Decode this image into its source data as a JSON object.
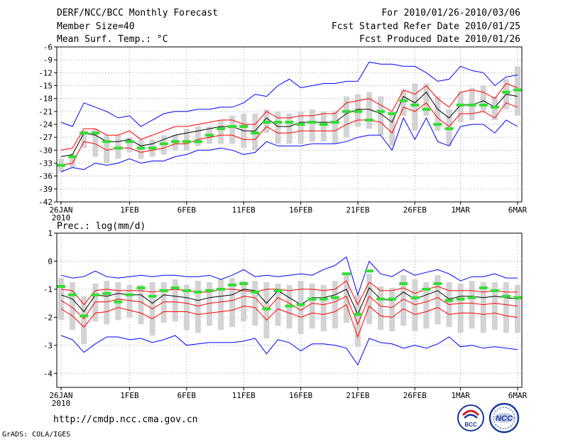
{
  "header": {
    "title": "DERF/NCC/BCC Monthly Forecast",
    "member_size": "Member Size=40",
    "variable": "Mean Surf. Temp.: °C",
    "forecast_range": "For 2010/01/26-2010/03/06",
    "fcst_started": "Fcst Started Refer Date 2010/01/25",
    "fcst_produced": "Fcst Produced Date 2010/01/26"
  },
  "footer": {
    "url": "http://cmdp.ncc.cma.gov.cn",
    "grads": "GrADS: COLA/IGES",
    "logo_left_text": "BCC",
    "logo_right_text": "NCC"
  },
  "colors": {
    "envelope": "#0000ff",
    "spread": "#ff0000",
    "mean": "#000000",
    "box": "#d3d3d3",
    "marker": "#33dd33",
    "grid": "#a0a0a0"
  },
  "chart_data": [
    {
      "type": "line",
      "title": "Mean Surf. Temp.: °C",
      "x_tick_labels": [
        "26JAN",
        "1FEB",
        "6FEB",
        "11FEB",
        "16FEB",
        "21FEB",
        "26FEB",
        "1MAR",
        "6MAR"
      ],
      "x_tick_days": [
        0,
        6,
        11,
        16,
        21,
        26,
        31,
        35,
        40
      ],
      "x_sub_label": "2010",
      "xlim": [
        0,
        40
      ],
      "ylim": [
        -42,
        -6
      ],
      "y_ticks": [
        -42,
        -39,
        -36,
        -33,
        -30,
        -27,
        -24,
        -21,
        -18,
        -15,
        -12,
        -9,
        -6
      ],
      "grid": true,
      "series": [
        {
          "name": "max",
          "values": [
            -23.5,
            -24.5,
            -19,
            -20,
            -21,
            -22.5,
            -22,
            -24.5,
            -23,
            -21.5,
            -21,
            -21,
            -20.5,
            -20.5,
            -20,
            -20,
            -19,
            -17,
            -17.5,
            -15,
            -13.5,
            -15.5,
            -15,
            -14.5,
            -14.5,
            -14,
            -14,
            -9.5,
            -10,
            -10,
            -10.5,
            -10.5,
            -12,
            -14,
            -13.5,
            -10.5,
            -11.5,
            -12,
            -15,
            -13,
            -12.5
          ]
        },
        {
          "name": "mean_plus",
          "values": [
            -30,
            -29.5,
            -25,
            -25,
            -26.5,
            -26.5,
            -25.5,
            -27.5,
            -26.5,
            -25.5,
            -24.5,
            -24.5,
            -24,
            -23.5,
            -23,
            -23,
            -24,
            -24,
            -21,
            -22.5,
            -22.5,
            -22,
            -22,
            -21.5,
            -21.5,
            -19,
            -18.5,
            -18,
            -19.5,
            -21,
            -16,
            -17,
            -15,
            -18,
            -20,
            -16.5,
            -16,
            -16.5,
            -18,
            -14.5,
            -15.5
          ]
        },
        {
          "name": "mean",
          "values": [
            -31.5,
            -31,
            -26,
            -26.5,
            -28,
            -28,
            -27.5,
            -29,
            -28.5,
            -27.5,
            -26.5,
            -26,
            -25.5,
            -25,
            -24.5,
            -24.5,
            -25.5,
            -25.5,
            -22.5,
            -24.5,
            -24.5,
            -23.5,
            -23.5,
            -23.5,
            -23.5,
            -21.5,
            -20.5,
            -20.5,
            -21.5,
            -23.5,
            -17.5,
            -19,
            -16.5,
            -20.5,
            -22.5,
            -19.5,
            -19.5,
            -18.5,
            -20,
            -17,
            -17.5
          ]
        },
        {
          "name": "mean_minus",
          "values": [
            -33.5,
            -33,
            -28,
            -28.5,
            -30,
            -29.5,
            -29.5,
            -30.5,
            -30,
            -29.5,
            -28.5,
            -28.5,
            -27.5,
            -27,
            -26.5,
            -26.5,
            -27.5,
            -27.5,
            -24.5,
            -26,
            -26,
            -25.5,
            -25.5,
            -25.5,
            -25.5,
            -24,
            -23,
            -23,
            -23.5,
            -26,
            -20,
            -21,
            -19,
            -22.5,
            -24.5,
            -21.5,
            -21.5,
            -21,
            -22.5,
            -19,
            -20
          ]
        },
        {
          "name": "min",
          "values": [
            -35,
            -34,
            -34.5,
            -33,
            -33.5,
            -33,
            -32,
            -33,
            -32.5,
            -32.5,
            -31.5,
            -31,
            -30,
            -30,
            -29.5,
            -30,
            -31,
            -30.5,
            -28,
            -29,
            -29,
            -29,
            -28.5,
            -28.5,
            -28.5,
            -28,
            -27,
            -26.5,
            -26.5,
            -30,
            -22.5,
            -27.5,
            -22.5,
            -28,
            -29,
            -24.5,
            -24,
            -24,
            -26,
            -23,
            -24.5
          ]
        },
        {
          "name": "box_top",
          "values": [
            -32,
            -31,
            -25.5,
            -25,
            -26.5,
            -26.5,
            -27,
            -27.5,
            -27.5,
            -26.5,
            -26.5,
            -25,
            -24.5,
            -24.5,
            -23,
            -22,
            -21.5,
            -21.5,
            -20.5,
            -21,
            -21.5,
            -21,
            -20.5,
            -21,
            -21,
            -17.5,
            -17,
            -16.5,
            -17.5,
            -21.5,
            -16,
            -14.5,
            -14.5,
            -17.5,
            -20.5,
            -16.5,
            -15.5,
            -15,
            -17.5,
            -13.5,
            -10.5
          ]
        },
        {
          "name": "box_bottom",
          "values": [
            -35,
            -34,
            -29.5,
            -31.5,
            -33,
            -32,
            -30.5,
            -32,
            -31.5,
            -31,
            -30,
            -30,
            -29,
            -28.5,
            -28.5,
            -28.5,
            -29.5,
            -30,
            -26,
            -28.5,
            -28.5,
            -28.5,
            -28,
            -28,
            -28.5,
            -27,
            -24.5,
            -25,
            -26.5,
            -29,
            -22,
            -25.5,
            -22,
            -25.5,
            -29,
            -23.5,
            -23,
            -21,
            -23,
            -20.5,
            -22
          ]
        },
        {
          "name": "marker",
          "values": [
            -33.5,
            -31.5,
            -26,
            -26,
            -28,
            -29.5,
            -28,
            -29.5,
            -29.5,
            -28.5,
            -28,
            -28,
            -28,
            -26.5,
            -25,
            -24.5,
            -24.5,
            -26,
            -23.5,
            -23.5,
            -23.5,
            -24,
            -23.5,
            -24,
            -23.5,
            -21,
            -21,
            -23,
            -21,
            -21.5,
            -18.5,
            -19.5,
            -20.5,
            -24,
            -25,
            -19.5,
            -19.5,
            -19.5,
            -20,
            -16.5,
            -16
          ]
        }
      ]
    },
    {
      "type": "line",
      "title": "Prec.: log(mm/d)",
      "x_tick_labels": [
        "26JAN",
        "1FEB",
        "6FEB",
        "11FEB",
        "16FEB",
        "21FEB",
        "26FEB",
        "1MAR",
        "6MAR"
      ],
      "x_tick_days": [
        0,
        6,
        11,
        16,
        21,
        26,
        31,
        35,
        40
      ],
      "x_sub_label": "2010",
      "xlim": [
        0,
        40
      ],
      "ylim": [
        -4.5,
        1
      ],
      "y_ticks": [
        -4,
        -3,
        -2,
        -1,
        0,
        1
      ],
      "grid": true,
      "series": [
        {
          "name": "max",
          "values": [
            -0.5,
            -0.6,
            -0.55,
            -0.35,
            -0.55,
            -0.6,
            -0.55,
            -0.5,
            -0.55,
            -0.5,
            -0.5,
            -0.55,
            -0.55,
            -0.5,
            -0.65,
            -0.5,
            -0.3,
            -0.55,
            -0.5,
            -0.55,
            -0.5,
            -0.45,
            -0.5,
            -0.3,
            -0.15,
            0.15,
            -1.2,
            0,
            -0.45,
            -0.55,
            -0.3,
            -0.5,
            -0.4,
            -0.3,
            -0.45,
            -0.7,
            -0.55,
            -0.55,
            -0.45,
            -0.6,
            -0.6
          ]
        },
        {
          "name": "mean_plus",
          "values": [
            -1.0,
            -1.05,
            -1.55,
            -1.05,
            -1.0,
            -1.05,
            -1.05,
            -1.05,
            -1.1,
            -1.05,
            -1.0,
            -1.05,
            -1.1,
            -1.1,
            -1.0,
            -1.0,
            -1.05,
            -1.1,
            -1.0,
            -1.0,
            -1.05,
            -1.0,
            -1.0,
            -1.05,
            -1.0,
            -0.7,
            -1.55,
            -0.75,
            -1.05,
            -1.05,
            -0.95,
            -1.15,
            -1.0,
            -0.9,
            -1.05,
            -1.05,
            -1.05,
            -1.1,
            -1.05,
            -1.1,
            -1.1
          ]
        },
        {
          "name": "mean",
          "values": [
            -1.2,
            -1.35,
            -1.8,
            -1.2,
            -1.25,
            -1.15,
            -1.2,
            -1.2,
            -1.5,
            -1.2,
            -1.25,
            -1.3,
            -1.4,
            -1.3,
            -1.25,
            -1.2,
            -1.0,
            -1.05,
            -1.5,
            -1.05,
            -1.3,
            -1.55,
            -1.3,
            -1.3,
            -1.2,
            -1.0,
            -1.9,
            -0.95,
            -1.35,
            -1.4,
            -1.1,
            -1.35,
            -1.2,
            -1.05,
            -1.35,
            -1.25,
            -1.25,
            -1.3,
            -1.25,
            -1.3,
            -1.35
          ]
        },
        {
          "name": "mean_minus",
          "values": [
            -1.4,
            -1.65,
            -2.05,
            -1.45,
            -1.45,
            -1.35,
            -1.4,
            -1.45,
            -1.7,
            -1.45,
            -1.45,
            -1.5,
            -1.6,
            -1.5,
            -1.45,
            -1.4,
            -1.25,
            -1.3,
            -1.75,
            -1.3,
            -1.5,
            -1.75,
            -1.5,
            -1.55,
            -1.45,
            -1.25,
            -2.25,
            -1.25,
            -1.6,
            -1.65,
            -1.35,
            -1.55,
            -1.45,
            -1.3,
            -1.55,
            -1.5,
            -1.5,
            -1.55,
            -1.5,
            -1.55,
            -1.6
          ]
        },
        {
          "name": "mean_minus2",
          "values": [
            -1.7,
            -1.95,
            -2.35,
            -1.85,
            -1.8,
            -1.65,
            -1.75,
            -1.85,
            -2.05,
            -1.8,
            -1.8,
            -1.8,
            -1.9,
            -1.85,
            -1.8,
            -1.75,
            -1.6,
            -1.65,
            -2.1,
            -1.7,
            -1.85,
            -2.0,
            -1.85,
            -1.9,
            -1.8,
            -1.55,
            -2.7,
            -1.6,
            -1.95,
            -2.0,
            -1.7,
            -1.9,
            -1.8,
            -1.65,
            -1.9,
            -1.85,
            -1.85,
            -1.9,
            -1.85,
            -1.95,
            -2.0
          ]
        },
        {
          "name": "min",
          "values": [
            -2.65,
            -2.8,
            -3.25,
            -2.95,
            -2.7,
            -2.7,
            -2.8,
            -2.75,
            -2.9,
            -2.8,
            -2.65,
            -3.0,
            -2.95,
            -2.9,
            -2.9,
            -2.9,
            -2.85,
            -2.75,
            -3.3,
            -2.8,
            -2.9,
            -3.2,
            -2.95,
            -2.95,
            -3.0,
            -3.1,
            -3.7,
            -2.75,
            -2.9,
            -2.95,
            -3.1,
            -3.0,
            -3.1,
            -2.95,
            -2.7,
            -3.05,
            -3.0,
            -3.1,
            -3.05,
            -3.1,
            -3.15
          ]
        },
        {
          "name": "box_top",
          "values": [
            -0.6,
            -0.75,
            -1.25,
            -0.8,
            -0.7,
            -0.75,
            -0.85,
            -0.85,
            -0.75,
            -0.75,
            -0.65,
            -0.85,
            -0.7,
            -0.75,
            -0.65,
            -0.6,
            -0.7,
            -0.7,
            -0.75,
            -0.8,
            -0.85,
            -0.7,
            -0.8,
            -0.85,
            -0.7,
            -0.5,
            -1.2,
            -0.45,
            -0.9,
            -0.95,
            -0.5,
            -0.65,
            -0.75,
            -0.5,
            -0.75,
            -0.8,
            -0.7,
            -0.75,
            -0.75,
            -0.75,
            -0.85
          ]
        },
        {
          "name": "box_bottom",
          "values": [
            -2.1,
            -2.45,
            -2.95,
            -2.15,
            -2.25,
            -2.1,
            -2.0,
            -2.25,
            -2.65,
            -2.2,
            -2.15,
            -2.45,
            -2.55,
            -2.3,
            -2.45,
            -2.35,
            -2.15,
            -2.3,
            -2.75,
            -2.3,
            -2.4,
            -2.6,
            -2.4,
            -2.5,
            -2.4,
            -2.2,
            -3.05,
            -2.25,
            -2.45,
            -2.5,
            -2.3,
            -2.5,
            -2.4,
            -2.25,
            -2.35,
            -2.55,
            -2.4,
            -2.55,
            -2.45,
            -2.55,
            -2.55
          ]
        },
        {
          "name": "marker",
          "values": [
            -0.9,
            -1.2,
            -1.95,
            -1.2,
            -1.15,
            -1.45,
            -1.2,
            -0.95,
            -1.25,
            -1.05,
            -0.95,
            -1.05,
            -1.1,
            -1.05,
            -1.0,
            -0.85,
            -0.8,
            -1.1,
            -1.7,
            -1.05,
            -1.6,
            -1.55,
            -1.35,
            -1.35,
            -1.3,
            -0.45,
            -1.9,
            -0.35,
            -1.35,
            -1.35,
            -0.8,
            -1.3,
            -1.0,
            -0.8,
            -1.4,
            -1.35,
            -1.3,
            -0.95,
            -1.05,
            -1.25,
            -1.3
          ]
        }
      ]
    }
  ]
}
